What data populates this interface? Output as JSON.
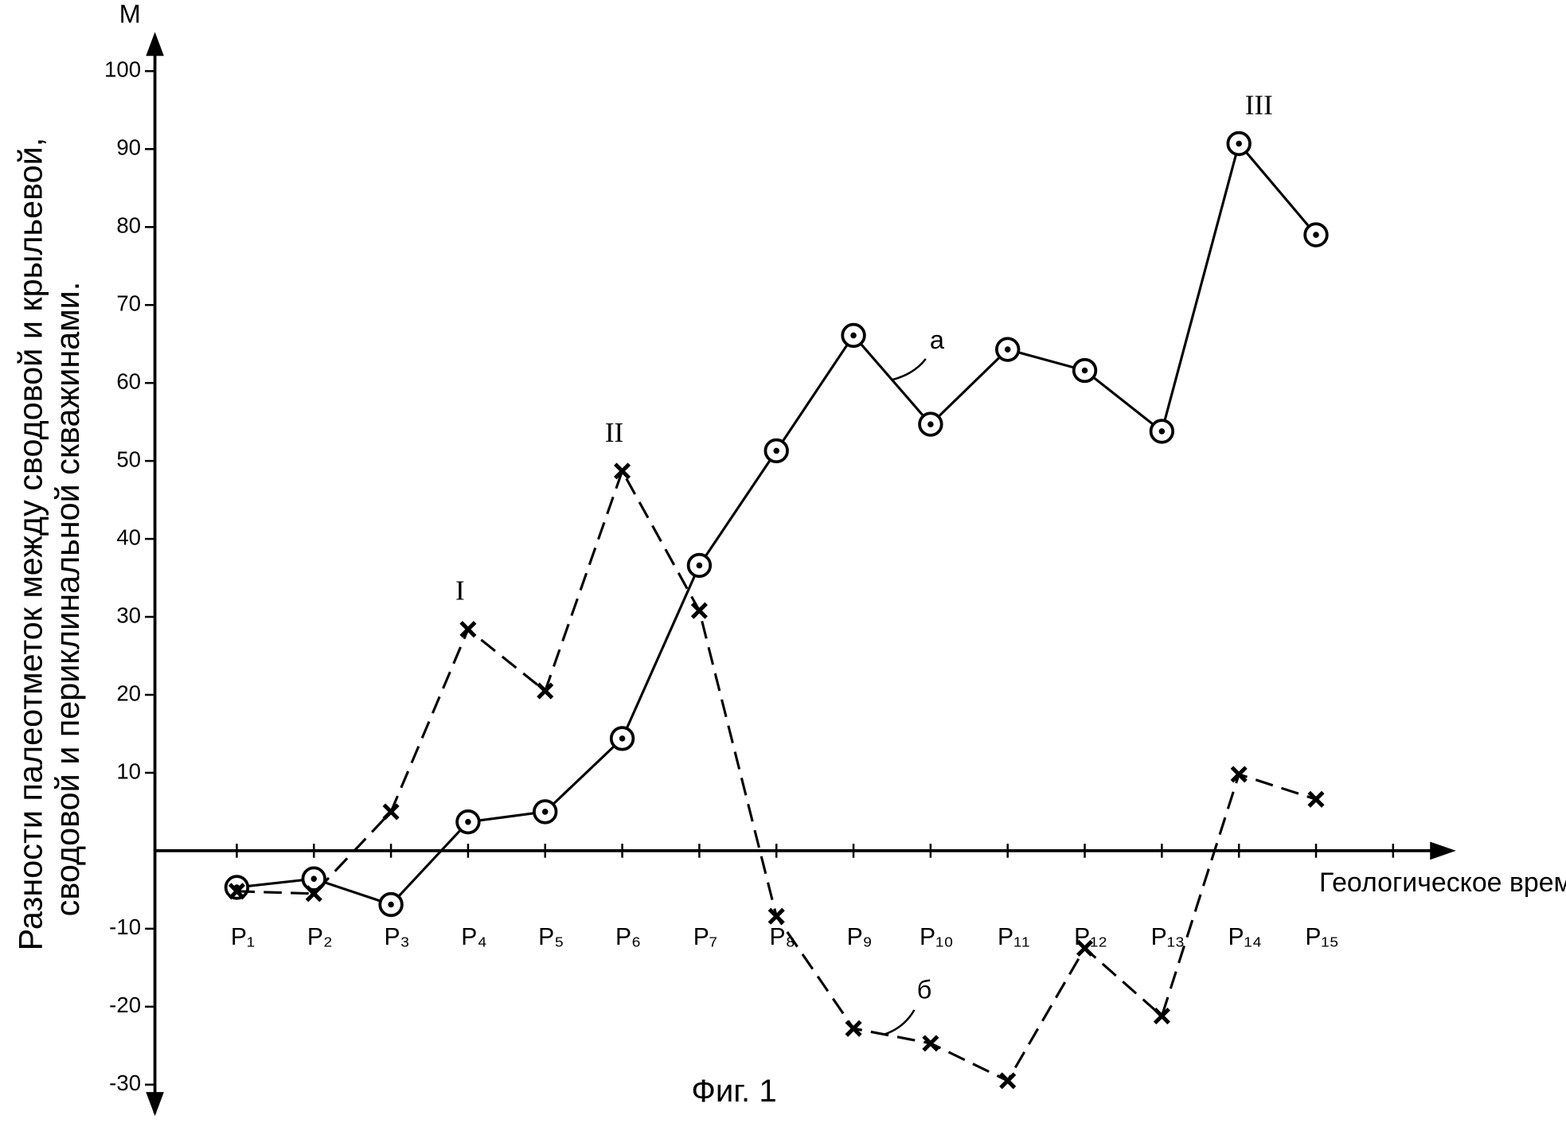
{
  "chart_data": {
    "type": "line",
    "title": "Фиг. 1",
    "y_unit": "М",
    "x_label": "Геологическое время",
    "y_label": [
      "Разности палеотметок между сводовой и крыльевой,",
      "сводовой и периклинальной скважинами."
    ],
    "categories": [
      "P₁",
      "P₂",
      "P₃",
      "P₄",
      "P₅",
      "P₆",
      "P₇",
      "P₈",
      "P₉",
      "P₁₀",
      "P₁₁",
      "P₁₂",
      "P₁₃",
      "P₁₄",
      "P₁₅"
    ],
    "series": [
      {
        "name": "а",
        "color": "#000000",
        "style": "solid",
        "marker": "circle-dot",
        "values": [
          -4.7,
          -3.6,
          -6.9,
          3.7,
          5,
          14.4,
          36.6,
          51.3,
          66.1,
          54.7,
          64.3,
          61.6,
          53.8,
          90.7,
          79
        ]
      },
      {
        "name": "б",
        "color": "#000000",
        "style": "dashed",
        "marker": "x",
        "values": [
          -5.2,
          -5.5,
          5,
          28.4,
          20.5,
          48.7,
          30.8,
          -8.4,
          -22.8,
          -24.7,
          -29.5,
          -12.5,
          -21.2,
          9.8,
          6.6
        ]
      }
    ],
    "annotations": [
      {
        "text": "I",
        "series": 1,
        "index": 3
      },
      {
        "text": "II",
        "series": 1,
        "index": 5
      },
      {
        "text": "III",
        "series": 0,
        "index": 13
      }
    ],
    "ylim": [
      -33,
      104
    ],
    "yticks": [
      -30,
      -20,
      -10,
      10,
      20,
      30,
      40,
      50,
      60,
      70,
      80,
      90,
      100
    ],
    "grid": false
  }
}
